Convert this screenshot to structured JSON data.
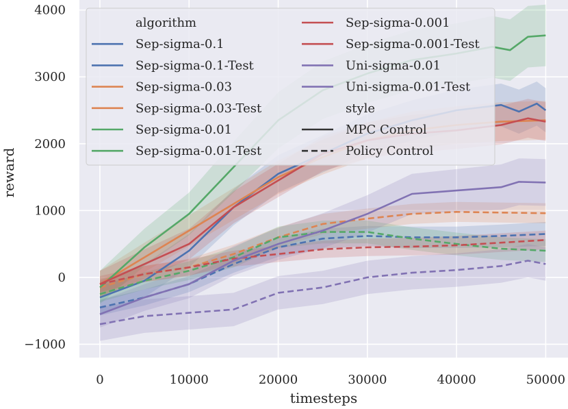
{
  "chart_data": {
    "type": "line",
    "xlabel": "timesteps",
    "ylabel": "reward",
    "xlim": [
      -2300,
      52500
    ],
    "ylim": [
      -1200,
      4150
    ],
    "xticks": [
      0,
      10000,
      20000,
      30000,
      40000,
      50000
    ],
    "xtick_labels": [
      "0",
      "10000",
      "20000",
      "30000",
      "40000",
      "50000"
    ],
    "yticks": [
      -1000,
      0,
      1000,
      2000,
      3000,
      4000
    ],
    "ytick_labels": [
      "−1000",
      "0",
      "1000",
      "2000",
      "3000",
      "4000"
    ],
    "grid": true,
    "legend_position": "top-left",
    "legend_hue_title": "algorithm",
    "legend_style_title": "style",
    "styles": [
      {
        "name": "MPC Control",
        "dash": "solid"
      },
      {
        "name": "Policy Control",
        "dash": "dashed"
      }
    ],
    "series": [
      {
        "name": "Sep-sigma-0.1",
        "color": "#4c72b0",
        "dash": "solid",
        "x": [
          0,
          5000,
          10000,
          15000,
          20000,
          25000,
          30000,
          35000,
          40000,
          45000,
          47000,
          49000,
          50000
        ],
        "y": [
          -300,
          -50,
          400,
          1050,
          1550,
          1850,
          2150,
          2350,
          2500,
          2580,
          2480,
          2600,
          2500
        ],
        "band": [
          250,
          250,
          250,
          270,
          280,
          280,
          290,
          300,
          310,
          320,
          330,
          330,
          330
        ]
      },
      {
        "name": "Sep-sigma-0.1-Test",
        "color": "#4c72b0",
        "dash": "dashed",
        "x": [
          0,
          5000,
          10000,
          15000,
          20000,
          25000,
          30000,
          35000,
          40000,
          45000,
          50000
        ],
        "y": [
          -450,
          -300,
          -100,
          200,
          450,
          580,
          620,
          600,
          600,
          620,
          650
        ],
        "band": [
          120,
          120,
          120,
          130,
          140,
          150,
          150,
          160,
          160,
          170,
          180
        ]
      },
      {
        "name": "Sep-sigma-0.03",
        "color": "#dd8452",
        "dash": "solid",
        "x": [
          0,
          5000,
          10000,
          15000,
          20000,
          25000,
          30000,
          35000,
          40000,
          45000,
          50000
        ],
        "y": [
          -100,
          300,
          700,
          1100,
          1500,
          1800,
          2050,
          2200,
          2280,
          2330,
          2350
        ],
        "band": [
          200,
          220,
          230,
          240,
          250,
          260,
          270,
          280,
          280,
          290,
          290
        ]
      },
      {
        "name": "Sep-sigma-0.03-Test",
        "color": "#dd8452",
        "dash": "dashed",
        "x": [
          0,
          5000,
          10000,
          15000,
          20000,
          25000,
          30000,
          35000,
          40000,
          45000,
          50000
        ],
        "y": [
          -150,
          50,
          150,
          350,
          600,
          800,
          880,
          950,
          980,
          970,
          960
        ],
        "band": [
          120,
          120,
          130,
          140,
          150,
          150,
          150,
          150,
          150,
          150,
          150
        ]
      },
      {
        "name": "Sep-sigma-0.01",
        "color": "#55a868",
        "dash": "solid",
        "x": [
          0,
          5000,
          10000,
          15000,
          20000,
          25000,
          30000,
          35000,
          40000,
          44000,
          46000,
          48000,
          50000
        ],
        "y": [
          -150,
          450,
          950,
          1650,
          2350,
          2800,
          3050,
          3250,
          3350,
          3450,
          3400,
          3600,
          3620
        ],
        "band": [
          250,
          280,
          320,
          380,
          420,
          430,
          440,
          450,
          450,
          460,
          460,
          460,
          460
        ]
      },
      {
        "name": "Sep-sigma-0.01-Test",
        "color": "#55a868",
        "dash": "dashed",
        "x": [
          0,
          5000,
          10000,
          15000,
          20000,
          25000,
          30000,
          35000,
          40000,
          45000,
          50000
        ],
        "y": [
          -250,
          -50,
          100,
          300,
          600,
          680,
          680,
          580,
          500,
          430,
          400
        ],
        "band": [
          120,
          130,
          140,
          150,
          160,
          170,
          170,
          170,
          170,
          170,
          170
        ]
      },
      {
        "name": "Sep-sigma-0.001",
        "color": "#c44e52",
        "dash": "solid",
        "x": [
          0,
          5000,
          10000,
          15000,
          20000,
          25000,
          30000,
          35000,
          40000,
          45000,
          48000,
          50000
        ],
        "y": [
          -100,
          200,
          500,
          1050,
          1450,
          1850,
          2050,
          2150,
          2200,
          2280,
          2380,
          2330
        ],
        "band": [
          200,
          220,
          230,
          240,
          250,
          260,
          270,
          280,
          280,
          290,
          290,
          290
        ]
      },
      {
        "name": "Sep-sigma-0.001-Test",
        "color": "#c44e52",
        "dash": "dashed",
        "x": [
          0,
          5000,
          10000,
          15000,
          20000,
          25000,
          30000,
          35000,
          40000,
          45000,
          50000
        ],
        "y": [
          -100,
          50,
          150,
          280,
          350,
          420,
          450,
          460,
          480,
          520,
          560
        ],
        "band": [
          120,
          120,
          120,
          120,
          120,
          130,
          130,
          130,
          140,
          140,
          140
        ]
      },
      {
        "name": "Uni-sigma-0.01",
        "color": "#8172b3",
        "dash": "solid",
        "x": [
          0,
          5000,
          10000,
          15000,
          20000,
          25000,
          30000,
          35000,
          40000,
          45000,
          47000,
          50000
        ],
        "y": [
          -550,
          -300,
          -100,
          250,
          500,
          700,
          950,
          1250,
          1300,
          1350,
          1430,
          1420
        ],
        "band": [
          200,
          200,
          210,
          220,
          240,
          260,
          280,
          300,
          320,
          340,
          350,
          350
        ]
      },
      {
        "name": "Uni-sigma-0.01-Test",
        "color": "#8172b3",
        "dash": "dashed",
        "x": [
          0,
          5000,
          10000,
          15000,
          20000,
          25000,
          30000,
          35000,
          40000,
          45000,
          48000,
          50000
        ],
        "y": [
          -700,
          -580,
          -530,
          -480,
          -230,
          -150,
          0,
          70,
          110,
          170,
          250,
          200
        ],
        "band": [
          250,
          250,
          250,
          250,
          250,
          250,
          250,
          250,
          250,
          250,
          250,
          250
        ]
      }
    ]
  }
}
